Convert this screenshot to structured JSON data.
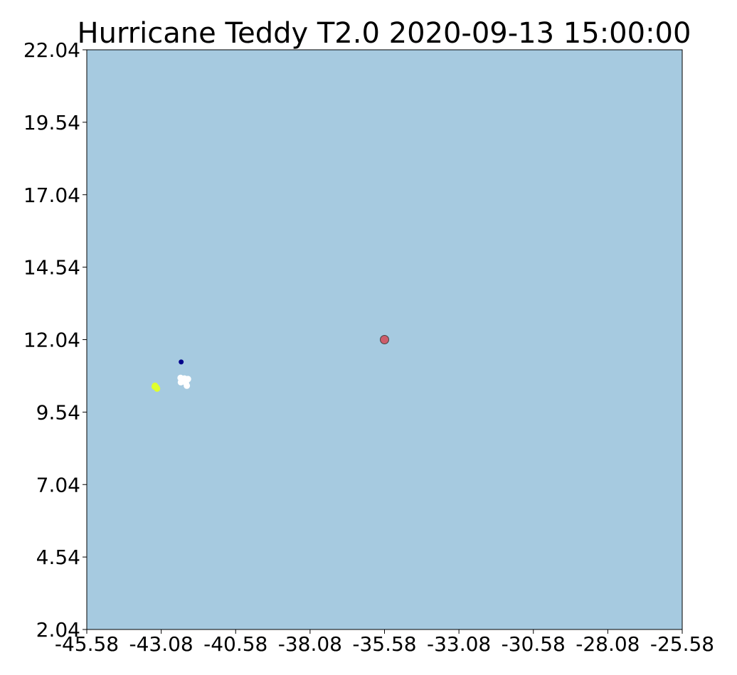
{
  "chart_data": {
    "type": "scatter",
    "title": "Hurricane Teddy T2.0 2020-09-13 15:00:00",
    "xlabel": "",
    "ylabel": "",
    "xlim": [
      -45.58,
      -25.58
    ],
    "ylim": [
      2.04,
      22.04
    ],
    "xticks": [
      "-45.58",
      "-43.08",
      "-40.58",
      "-38.08",
      "-35.58",
      "-33.08",
      "-30.58",
      "-28.08",
      "-25.58"
    ],
    "yticks": [
      "2.04",
      "4.54",
      "7.04",
      "9.54",
      "12.04",
      "14.54",
      "17.04",
      "19.54",
      "22.04"
    ],
    "grid": false,
    "legend": "none",
    "background_color": "#a6cae0",
    "series": [
      {
        "color": "#e0ff2c",
        "points": [
          [
            -43.29,
            10.45
          ],
          [
            -43.25,
            10.4
          ],
          [
            -43.22,
            10.35
          ],
          [
            -43.3,
            10.42
          ]
        ]
      },
      {
        "color": "#ffffff",
        "points": [
          [
            -42.43,
            10.72
          ],
          [
            -42.3,
            10.7
          ],
          [
            -42.18,
            10.68
          ],
          [
            -42.42,
            10.57
          ],
          [
            -42.25,
            10.55
          ],
          [
            -42.35,
            10.6
          ],
          [
            -42.22,
            10.45
          ],
          [
            -42.28,
            10.63
          ]
        ]
      },
      {
        "color": "#00008b",
        "points": [
          [
            -42.41,
            11.27
          ]
        ]
      },
      {
        "color": "#cd5c6a",
        "points": [
          [
            -35.58,
            12.04
          ]
        ],
        "marker": "storm-center"
      }
    ]
  }
}
